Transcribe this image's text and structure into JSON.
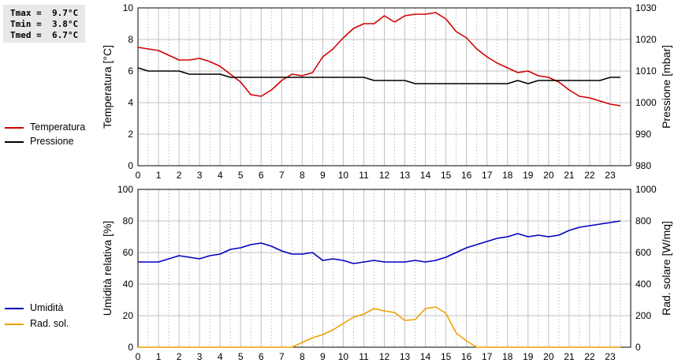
{
  "stats": {
    "tmax": "Tmax =  9.7°C",
    "tmin": "Tmin =  3.8°C",
    "tmed": "Tmed =  6.7°C"
  },
  "legend_top": [
    {
      "label": "Temperatura",
      "color": "#d00000"
    },
    {
      "label": "Pressione",
      "color": "#000000"
    }
  ],
  "legend_bottom": [
    {
      "label": "Umidità",
      "color": "#0000c0"
    },
    {
      "label": "Rad. sol.",
      "color": "#f0a000"
    }
  ],
  "chart_data": [
    {
      "type": "line",
      "xlabel": "",
      "x_ticks": [
        "0",
        "1",
        "2",
        "3",
        "4",
        "5",
        "6",
        "7",
        "8",
        "9",
        "10",
        "11",
        "12",
        "13",
        "14",
        "15",
        "16",
        "17",
        "18",
        "19",
        "20",
        "21",
        "22",
        "23"
      ],
      "xlim": [
        0,
        24
      ],
      "grid": true,
      "y_left": {
        "label": "Temperatura [°C]",
        "lim": [
          0,
          10
        ],
        "ticks": [
          "0",
          "2",
          "4",
          "6",
          "8",
          "10"
        ]
      },
      "y_right": {
        "label": "Pressione [mbar]",
        "lim": [
          980,
          1030
        ],
        "ticks": [
          "980",
          "990",
          "1000",
          "1010",
          "1020",
          "1030"
        ]
      },
      "series": [
        {
          "name": "Temperatura",
          "axis": "left",
          "color": "#d00000",
          "x": [
            0,
            0.5,
            1,
            1.5,
            2,
            2.5,
            3,
            3.5,
            4,
            4.5,
            5,
            5.5,
            6,
            6.5,
            7,
            7.5,
            8,
            8.5,
            9,
            9.5,
            10,
            10.5,
            11,
            11.5,
            12,
            12.5,
            13,
            13.5,
            14,
            14.5,
            15,
            15.5,
            16,
            16.5,
            17,
            17.5,
            18,
            18.5,
            19,
            19.5,
            20,
            20.5,
            21,
            21.5,
            22,
            22.5,
            23,
            23.5
          ],
          "y": [
            7.5,
            7.4,
            7.3,
            7.0,
            6.7,
            6.7,
            6.8,
            6.6,
            6.3,
            5.8,
            5.3,
            4.5,
            4.4,
            4.8,
            5.4,
            5.8,
            5.7,
            5.9,
            6.9,
            7.4,
            8.1,
            8.7,
            9.0,
            9.0,
            9.5,
            9.1,
            9.5,
            9.6,
            9.6,
            9.7,
            9.3,
            8.5,
            8.1,
            7.4,
            6.9,
            6.5,
            6.2,
            5.9,
            6.0,
            5.7,
            5.6,
            5.3,
            4.8,
            4.4,
            4.3,
            4.1,
            3.9,
            3.8
          ]
        },
        {
          "name": "Pressione",
          "axis": "right",
          "color": "#000000",
          "x": [
            0,
            0.5,
            1,
            1.5,
            2,
            2.5,
            3,
            3.5,
            4,
            4.5,
            5,
            5.5,
            6,
            6.5,
            7,
            7.5,
            8,
            8.5,
            9,
            9.5,
            10,
            10.5,
            11,
            11.5,
            12,
            12.5,
            13,
            13.5,
            14,
            14.5,
            15,
            15.5,
            16,
            16.5,
            17,
            17.5,
            18,
            18.5,
            19,
            19.5,
            20,
            20.5,
            21,
            21.5,
            22,
            22.5,
            23,
            23.5
          ],
          "y": [
            1011,
            1010,
            1010,
            1010,
            1010,
            1009,
            1009,
            1009,
            1009,
            1008,
            1008,
            1008,
            1008,
            1008,
            1008,
            1008,
            1008,
            1008,
            1008,
            1008,
            1008,
            1008,
            1008,
            1007,
            1007,
            1007,
            1007,
            1006,
            1006,
            1006,
            1006,
            1006,
            1006,
            1006,
            1006,
            1006,
            1006,
            1007,
            1006,
            1007,
            1007,
            1007,
            1007,
            1007,
            1007,
            1007,
            1008,
            1008
          ]
        }
      ]
    },
    {
      "type": "line",
      "xlabel": "",
      "x_ticks": [
        "0",
        "1",
        "2",
        "3",
        "4",
        "5",
        "6",
        "7",
        "8",
        "9",
        "10",
        "11",
        "12",
        "13",
        "14",
        "15",
        "16",
        "17",
        "18",
        "19",
        "20",
        "21",
        "22",
        "23"
      ],
      "xlim": [
        0,
        24
      ],
      "grid": true,
      "y_left": {
        "label": "Umidità relativa [%]",
        "lim": [
          0,
          100
        ],
        "ticks": [
          "0",
          "20",
          "40",
          "60",
          "80",
          "100"
        ]
      },
      "y_right": {
        "label": "Rad. solare [W/mq]",
        "lim": [
          0,
          1000
        ],
        "ticks": [
          "0",
          "200",
          "400",
          "600",
          "800",
          "1000"
        ]
      },
      "series": [
        {
          "name": "Umidità",
          "axis": "left",
          "color": "#0000c0",
          "x": [
            0,
            0.5,
            1,
            1.5,
            2,
            2.5,
            3,
            3.5,
            4,
            4.5,
            5,
            5.5,
            6,
            6.5,
            7,
            7.5,
            8,
            8.5,
            9,
            9.5,
            10,
            10.5,
            11,
            11.5,
            12,
            12.5,
            13,
            13.5,
            14,
            14.5,
            15,
            15.5,
            16,
            16.5,
            17,
            17.5,
            18,
            18.5,
            19,
            19.5,
            20,
            20.5,
            21,
            21.5,
            22,
            22.5,
            23,
            23.5
          ],
          "y": [
            54,
            54,
            54,
            56,
            58,
            57,
            56,
            58,
            59,
            62,
            63,
            65,
            66,
            64,
            61,
            59,
            59,
            60,
            55,
            56,
            55,
            53,
            54,
            55,
            54,
            54,
            54,
            55,
            54,
            55,
            57,
            60,
            63,
            65,
            67,
            69,
            70,
            72,
            70,
            71,
            70,
            71,
            74,
            76,
            77,
            78,
            79,
            80
          ]
        },
        {
          "name": "Rad. sol.",
          "axis": "right",
          "color": "#f0a000",
          "x": [
            0,
            0.5,
            1,
            1.5,
            2,
            2.5,
            3,
            3.5,
            4,
            4.5,
            5,
            5.5,
            6,
            6.5,
            7,
            7.5,
            8,
            8.5,
            9,
            9.5,
            10,
            10.5,
            11,
            11.5,
            12,
            12.5,
            13,
            13.5,
            14,
            14.5,
            15,
            15.5,
            16,
            16.5,
            17,
            17.5,
            18,
            18.5,
            19,
            19.5,
            20,
            20.5,
            21,
            21.5,
            22,
            22.5,
            23,
            23.5
          ],
          "y": [
            0,
            0,
            0,
            0,
            0,
            0,
            0,
            0,
            0,
            0,
            0,
            0,
            0,
            0,
            0,
            0,
            30,
            60,
            80,
            110,
            150,
            190,
            210,
            245,
            230,
            220,
            170,
            175,
            245,
            255,
            215,
            90,
            40,
            0,
            0,
            0,
            0,
            0,
            0,
            0,
            0,
            0,
            0,
            0,
            0,
            0,
            0,
            0
          ]
        }
      ]
    }
  ]
}
